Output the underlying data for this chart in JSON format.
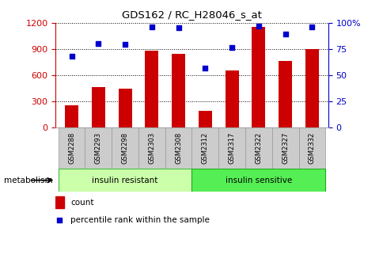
{
  "title": "GDS162 / RC_H28046_s_at",
  "samples": [
    "GSM2288",
    "GSM2293",
    "GSM2298",
    "GSM2303",
    "GSM2308",
    "GSM2312",
    "GSM2317",
    "GSM2322",
    "GSM2327",
    "GSM2332"
  ],
  "counts": [
    260,
    460,
    450,
    880,
    840,
    190,
    650,
    1150,
    760,
    900
  ],
  "percentile": [
    68,
    80,
    79,
    96,
    95,
    57,
    76,
    97,
    89,
    96
  ],
  "group_labels": [
    "insulin resistant",
    "insulin sensitive"
  ],
  "group_colors": [
    "#ccffaa",
    "#55ee55"
  ],
  "bar_color": "#cc0000",
  "dot_color": "#0000cc",
  "left_ylim": [
    0,
    1200
  ],
  "left_yticks": [
    0,
    300,
    600,
    900,
    1200
  ],
  "right_ylim": [
    0,
    100
  ],
  "right_yticks": [
    0,
    25,
    50,
    75,
    100
  ],
  "right_yticklabels": [
    "0",
    "25",
    "50",
    "75",
    "100%"
  ],
  "left_tick_color": "#cc0000",
  "right_tick_color": "#0000cc",
  "tick_bg": "#cccccc",
  "metabolism_label": "metabolism",
  "legend_count_label": "count",
  "legend_pct_label": "percentile rank within the sample"
}
